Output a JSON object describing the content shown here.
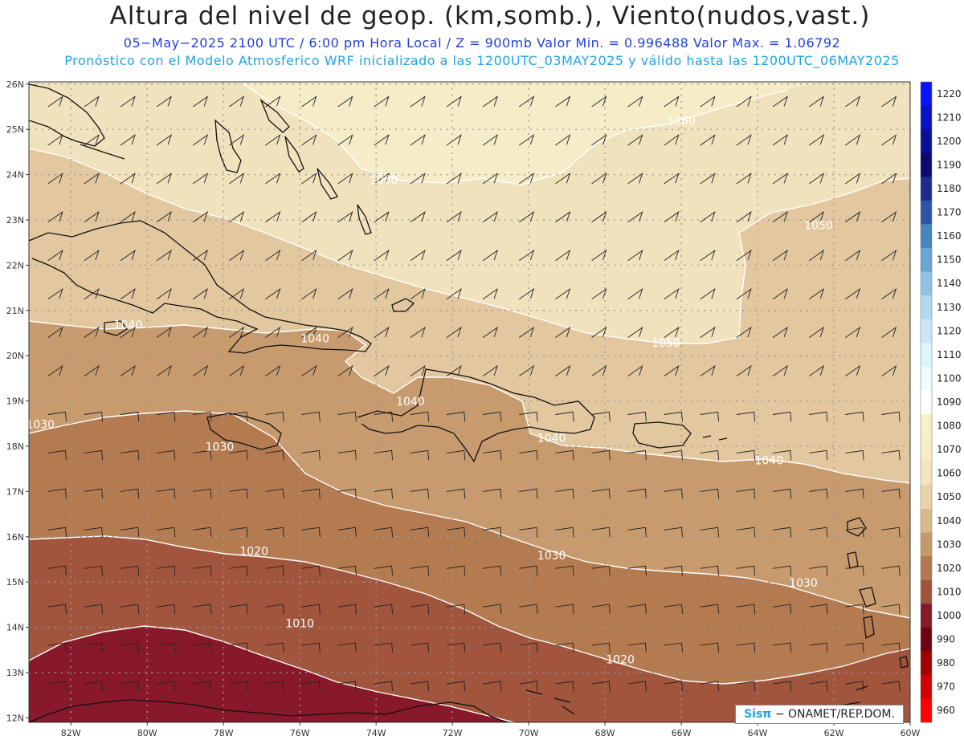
{
  "header": {
    "title": "Altura del nivel de geop. (km,somb.), Viento(nudos,vast.)",
    "subtitle1": "05−May−2025   2100 UTC / 6:00 pm Hora Local / Z = 900mb    Valor Min. = 0.996488   Valor Max. = 1.06792",
    "subtitle2": "Pronóstico con el Modelo Atmosferico WRF inicializado a las 1200UTC_03MAY2025 y válido hasta las  1200UTC_06MAY2025"
  },
  "axes": {
    "lat_labels": [
      "26N",
      "25N",
      "24N",
      "23N",
      "22N",
      "21N",
      "20N",
      "19N",
      "18N",
      "17N",
      "16N",
      "15N",
      "14N",
      "13N",
      "12N"
    ],
    "lon_labels": [
      "82W",
      "80W",
      "78W",
      "76W",
      "74W",
      "72W",
      "70W",
      "68W",
      "66W",
      "64W",
      "62W",
      "60W"
    ]
  },
  "contour_labels": [
    {
      "text": "1060",
      "lon": -66.0,
      "lat": 25.1
    },
    {
      "text": "1060",
      "lon": -73.8,
      "lat": 23.8
    },
    {
      "text": "1050",
      "lon": -62.4,
      "lat": 22.8
    },
    {
      "text": "1050",
      "lon": -66.4,
      "lat": 20.2
    },
    {
      "text": "1040",
      "lon": -80.5,
      "lat": 20.6
    },
    {
      "text": "1040",
      "lon": -75.6,
      "lat": 20.3
    },
    {
      "text": "1040",
      "lon": -73.1,
      "lat": 18.9
    },
    {
      "text": "1040",
      "lon": -69.4,
      "lat": 18.1
    },
    {
      "text": "1040",
      "lon": -63.7,
      "lat": 17.6
    },
    {
      "text": "1030",
      "lon": -82.8,
      "lat": 18.4
    },
    {
      "text": "1030",
      "lon": -78.1,
      "lat": 17.9
    },
    {
      "text": "1030",
      "lon": -69.4,
      "lat": 15.5
    },
    {
      "text": "1030",
      "lon": -62.8,
      "lat": 14.9
    },
    {
      "text": "1020",
      "lon": -77.2,
      "lat": 15.6
    },
    {
      "text": "1020",
      "lon": -67.6,
      "lat": 13.2
    },
    {
      "text": "1010",
      "lon": -76.0,
      "lat": 14.0
    }
  ],
  "legend": {
    "labels": [
      "1220",
      "1210",
      "1200",
      "1190",
      "1180",
      "1170",
      "1160",
      "1150",
      "1140",
      "1130",
      "1120",
      "1110",
      "1100",
      "1090",
      "1080",
      "1070",
      "1060",
      "1050",
      "1040",
      "1030",
      "1020",
      "1010",
      "1000",
      "990",
      "980",
      "970",
      "960"
    ],
    "colors": [
      "#0a14ff",
      "#0a12c8",
      "#081096",
      "#0a0a6e",
      "#1c2a8c",
      "#2e54a8",
      "#4a84c0",
      "#6aa6d2",
      "#8ec4e2",
      "#b0daf0",
      "#c8e8f8",
      "#ddf4fc",
      "#eefbff",
      "#ffffff",
      "#faf0c8",
      "#f8ecc6",
      "#f4e4bd",
      "#e8d2a6",
      "#d9bb8a",
      "#c49a6a",
      "#b3784f",
      "#9e5439",
      "#841c2a",
      "#6e0010",
      "#a00000",
      "#d00000",
      "#ff0000"
    ]
  },
  "fill_colors": {
    "1060": "#f6ecc8",
    "1050": "#f0e2bd",
    "1040": "#e2c79f",
    "1030": "#c89b6e",
    "1020": "#b47a50",
    "1010": "#a0553c",
    "1000": "#88192a"
  },
  "credit": {
    "brand": "Sisπ",
    "text": " − ONAMET/REP.DOM."
  }
}
